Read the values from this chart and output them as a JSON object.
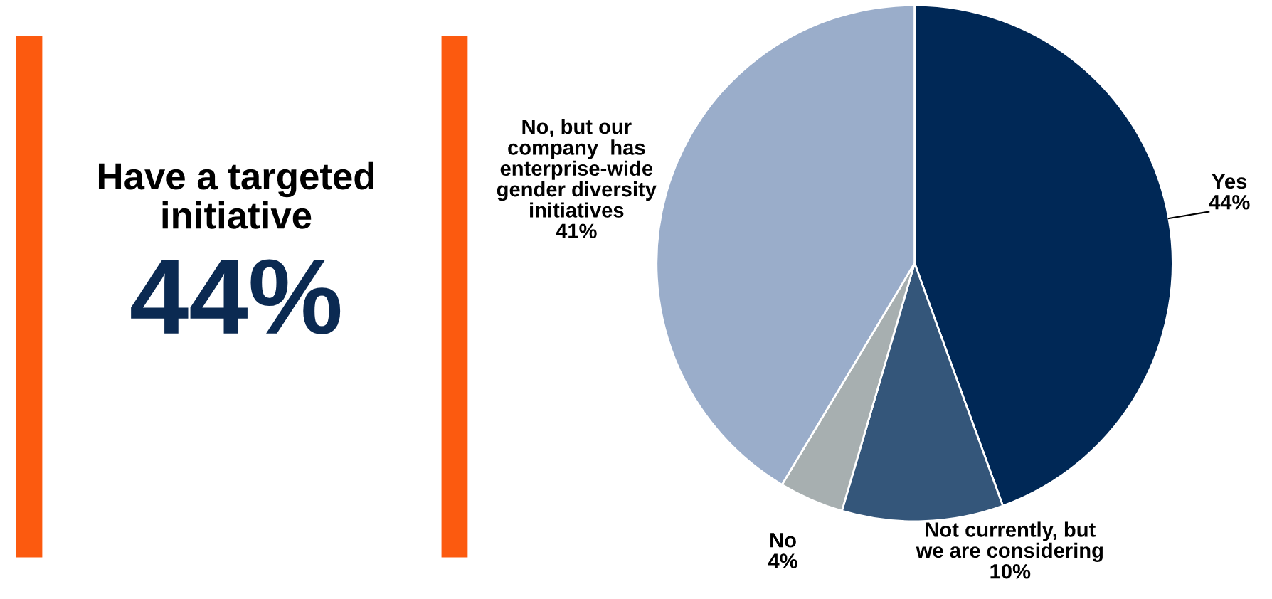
{
  "chart_data": [
    {
      "type": "other",
      "title": "Have a targeted\ninitiative",
      "annotations": [
        "44%"
      ]
    },
    {
      "type": "pie",
      "categories": [
        "Yes",
        "Not currently, but\nwe are considering",
        "No",
        "No, but our\ncompany  has\nenterprise-wide\ngender diversity\ninitiatives"
      ],
      "values": [
        44,
        10,
        4,
        41
      ],
      "value_labels": [
        "44%",
        "10%",
        "4%",
        "41%"
      ],
      "colors": [
        "#002856",
        "#34567a",
        "#a7afb0",
        "#9aadca"
      ]
    }
  ]
}
